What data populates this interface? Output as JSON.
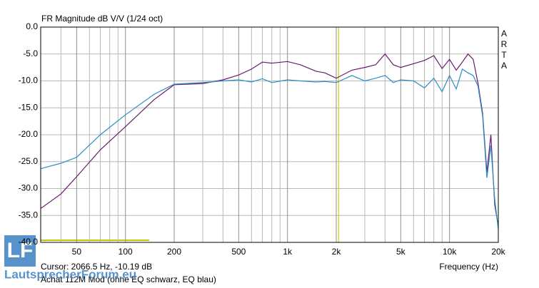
{
  "chart_data": {
    "type": "line",
    "title": "FR Magnitude dB V/V (1/24 oct)",
    "watermark": "ARTA",
    "xlabel": "Frequency (Hz)",
    "cursor_text": "Cursor: 2066.5 Hz, -10.19 dB",
    "cursor_x": 2066.5,
    "caption": "Achat 112M Mod (ohne EQ schwarz, EQ blau)",
    "xscale": "log",
    "grid": true,
    "xlim": [
      30,
      20000
    ],
    "ylim": [
      -40,
      0
    ],
    "xticks": [
      50,
      100,
      200,
      500,
      {
        "value": 1000,
        "label": "1k"
      },
      {
        "value": 2000,
        "label": "2k"
      },
      {
        "value": 5000,
        "label": "5k"
      },
      {
        "value": 10000,
        "label": "10k"
      },
      {
        "value": 20000,
        "label": "20k"
      }
    ],
    "xminor": [
      30,
      40,
      60,
      70,
      80,
      90,
      300,
      400,
      600,
      700,
      800,
      900,
      3000,
      4000,
      6000,
      7000,
      8000,
      9000
    ],
    "yticks": [
      {
        "value": 0,
        "label": "0.0"
      },
      {
        "value": -5,
        "label": "-5.0"
      },
      {
        "value": -10,
        "label": "-10.0"
      },
      {
        "value": -15,
        "label": "-15.0"
      },
      {
        "value": -20,
        "label": "-20.0"
      },
      {
        "value": -25,
        "label": "-25.0"
      },
      {
        "value": -30,
        "label": "-30.0"
      },
      {
        "value": -35,
        "label": "-35.0"
      },
      {
        "value": -40,
        "label": "-40.0"
      }
    ],
    "x": [
      30,
      40,
      50,
      70,
      100,
      150,
      200,
      300,
      400,
      500,
      600,
      700,
      800,
      1000,
      1200,
      1500,
      1700,
      2000,
      2500,
      3000,
      3500,
      4000,
      4500,
      5000,
      6000,
      7000,
      8000,
      9000,
      10000,
      11000,
      12000,
      13000,
      14000,
      15000,
      16000,
      17000,
      18000,
      19000,
      20000
    ],
    "series": [
      {
        "color": "#6a1a6e",
        "values": [
          -33.7,
          -31.0,
          -27.8,
          -22.8,
          -18.5,
          -13.5,
          -10.7,
          -10.5,
          -9.8,
          -8.9,
          -7.8,
          -6.5,
          -6.7,
          -6.4,
          -7.0,
          -8.2,
          -8.5,
          -9.5,
          -8.0,
          -7.5,
          -7.0,
          -5.0,
          -7.0,
          -7.5,
          -6.8,
          -6.2,
          -5.3,
          -7.7,
          -6.0,
          -8.0,
          -6.5,
          -5.0,
          -6.0,
          -10.5,
          -16.0,
          -27.0,
          -20.0,
          -33.0,
          -37.0
        ]
      },
      {
        "color": "#2a8fc4",
        "values": [
          -26.3,
          -25.3,
          -24.2,
          -20.0,
          -16.3,
          -12.5,
          -10.6,
          -10.3,
          -10.0,
          -9.8,
          -10.2,
          -9.6,
          -10.3,
          -9.8,
          -10.0,
          -10.2,
          -10.1,
          -10.3,
          -9.0,
          -10.0,
          -9.5,
          -9.0,
          -10.3,
          -9.8,
          -10.0,
          -11.3,
          -9.5,
          -12.0,
          -9.0,
          -11.5,
          -7.8,
          -8.5,
          -9.0,
          -11.0,
          -16.5,
          -28.0,
          -22.0,
          -32.0,
          -37.5
        ]
      }
    ]
  },
  "logo": {
    "mark": "LF",
    "text": "LautsprecherForum.eu"
  }
}
